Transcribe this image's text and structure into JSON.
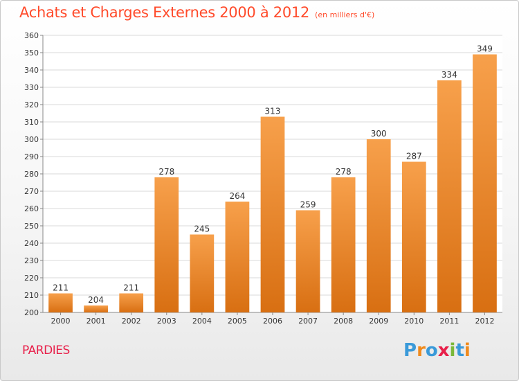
{
  "chart_data": {
    "type": "bar",
    "title": "Achats et Charges Externes 2000 à 2012",
    "subtitle": "(en milliers d'€)",
    "xlabel": "",
    "ylabel": "",
    "categories": [
      "2000",
      "2001",
      "2002",
      "2003",
      "2004",
      "2005",
      "2006",
      "2007",
      "2008",
      "2009",
      "2010",
      "2011",
      "2012"
    ],
    "values": [
      211,
      204,
      211,
      278,
      245,
      264,
      313,
      259,
      278,
      300,
      287,
      334,
      349
    ],
    "ylim": [
      200,
      360
    ],
    "yticks": [
      200,
      210,
      220,
      230,
      240,
      250,
      260,
      270,
      280,
      290,
      300,
      310,
      320,
      330,
      340,
      350,
      360
    ],
    "grid": true,
    "legend": "none",
    "bar_color_top": "#f7a04b",
    "bar_color_bottom": "#d86f12"
  },
  "footer": {
    "town": "PARDIES",
    "brand": [
      "P",
      "r",
      "o",
      "x",
      "i",
      "t",
      "i"
    ],
    "brand_colors": [
      "#3a9ad9",
      "#f08a1c",
      "#3a9ad9",
      "#e8204a",
      "#7ab83a",
      "#3a9ad9",
      "#f08a1c"
    ]
  }
}
